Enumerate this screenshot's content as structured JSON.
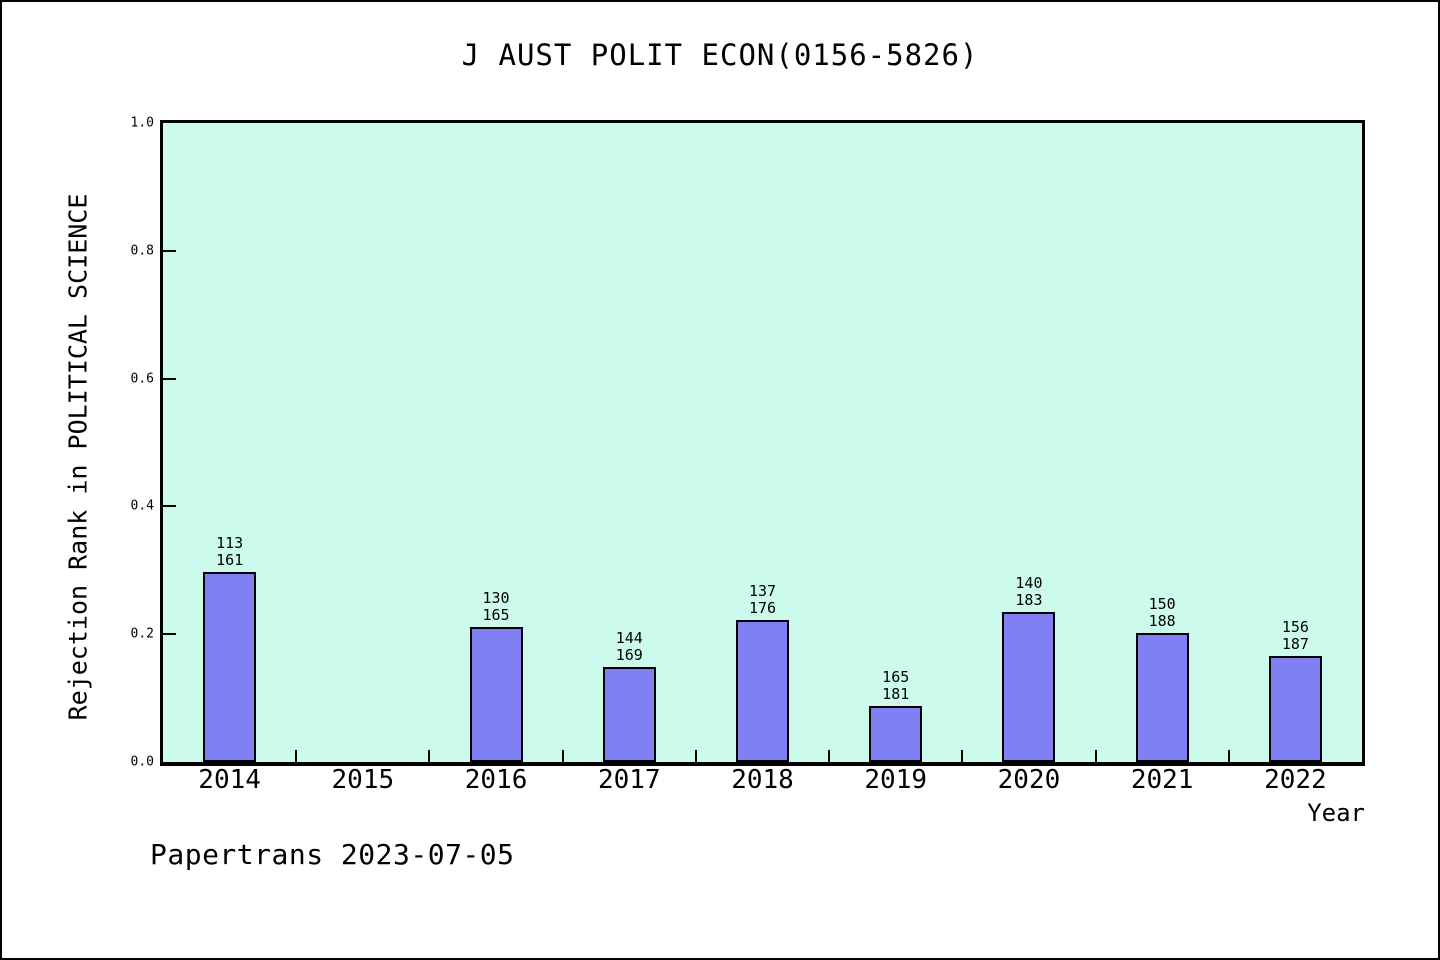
{
  "footer": {
    "watermark": "Papertrans 2023-07-05"
  },
  "chart_data": {
    "type": "bar",
    "title": "J AUST POLIT ECON(0156-5826)",
    "xlabel": "Year",
    "ylabel": "Rejection Rank in POLITICAL SCIENCE",
    "ylim": [
      0.0,
      1.0
    ],
    "ytick_labels": [
      "0.0",
      "0.2",
      "0.4",
      "0.6",
      "0.8",
      "1.0"
    ],
    "ytick_values": [
      0.0,
      0.2,
      0.4,
      0.6,
      0.8,
      1.0
    ],
    "grid": false,
    "legend": null,
    "categories": [
      "2014",
      "2015",
      "2016",
      "2017",
      "2018",
      "2019",
      "2020",
      "2021",
      "2022"
    ],
    "bars": [
      {
        "year": "2014",
        "label_line1": "113",
        "label_line2": "161",
        "value": 0.298
      },
      {
        "year": "2015",
        "label_line1": null,
        "label_line2": null,
        "value": null
      },
      {
        "year": "2016",
        "label_line1": "130",
        "label_line2": "165",
        "value": 0.212
      },
      {
        "year": "2017",
        "label_line1": "144",
        "label_line2": "169",
        "value": 0.148
      },
      {
        "year": "2018",
        "label_line1": "137",
        "label_line2": "176",
        "value": 0.222
      },
      {
        "year": "2019",
        "label_line1": "165",
        "label_line2": "181",
        "value": 0.088
      },
      {
        "year": "2020",
        "label_line1": "140",
        "label_line2": "183",
        "value": 0.235
      },
      {
        "year": "2021",
        "label_line1": "150",
        "label_line2": "188",
        "value": 0.202
      },
      {
        "year": "2022",
        "label_line1": "156",
        "label_line2": "187",
        "value": 0.166
      }
    ],
    "colors": {
      "bar_fill": "#8080F5",
      "bar_border": "#000000",
      "plot_background": "#CCFAED",
      "axis": "#000000",
      "text": "#000000",
      "page_background": "#FFFFFF"
    }
  }
}
